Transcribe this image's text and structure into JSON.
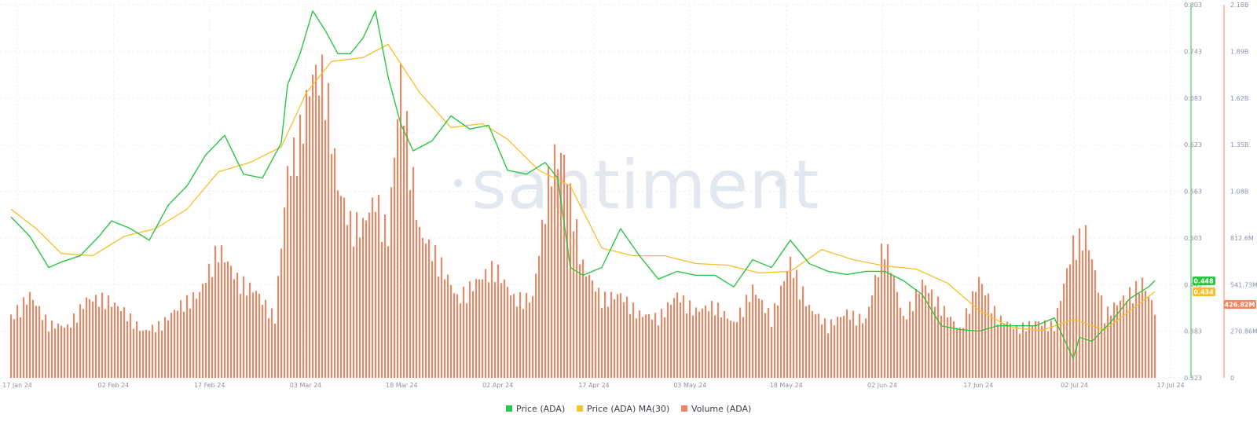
{
  "watermark": "santiment",
  "legend": [
    {
      "label": "Price (ADA)",
      "color": "#26c94f"
    },
    {
      "label": "Price (ADA) MA(30)",
      "color": "#f4c430"
    },
    {
      "label": "Volume (ADA)",
      "color": "#f4845f"
    }
  ],
  "colors": {
    "price": "#2bc544",
    "ma": "#f5bf2a",
    "volume": "#f4845f",
    "price_axis": "#2bc544",
    "volume_axis": "#f4845f",
    "grid": "#eceff5"
  },
  "badges": {
    "price": "0.448",
    "ma": "0.434",
    "volume": "426.82M"
  },
  "chart_data": {
    "type": "line",
    "x_ticks": [
      "17 Jan 24",
      "02 Feb 24",
      "17 Feb 24",
      "03 Mar 24",
      "18 Mar 24",
      "02 Apr 24",
      "17 Apr 24",
      "03 May 24",
      "18 May 24",
      "02 Jun 24",
      "17 Jun 24",
      "02 Jul 24",
      "17 Jul 24"
    ],
    "y_left_ticks": [
      "0.803",
      "0.743",
      "0.683",
      "0.623",
      "0.563",
      "0.503",
      "0.443",
      "0.383",
      "0.323"
    ],
    "y_left_range": [
      0.323,
      0.803
    ],
    "y_right_ticks": [
      "2.18B",
      "1.89B",
      "1.62B",
      "1.35B",
      "1.08B",
      "812.6M",
      "541.73M",
      "270.86M",
      "0"
    ],
    "y_right_range": [
      0,
      2180000000
    ],
    "grid": true,
    "legend_position": "bottom-center",
    "series": [
      {
        "name": "Price (ADA)",
        "axis": "left",
        "x": [
          "2024-01-17",
          "2024-01-20",
          "2024-01-23",
          "2024-01-25",
          "2024-01-28",
          "2024-01-31",
          "2024-02-02",
          "2024-02-05",
          "2024-02-08",
          "2024-02-11",
          "2024-02-14",
          "2024-02-17",
          "2024-02-20",
          "2024-02-23",
          "2024-02-26",
          "2024-02-29",
          "2024-03-01",
          "2024-03-03",
          "2024-03-05",
          "2024-03-07",
          "2024-03-09",
          "2024-03-11",
          "2024-03-13",
          "2024-03-15",
          "2024-03-17",
          "2024-03-19",
          "2024-03-21",
          "2024-03-24",
          "2024-03-27",
          "2024-03-30",
          "2024-04-02",
          "2024-04-05",
          "2024-04-08",
          "2024-04-11",
          "2024-04-13",
          "2024-04-15",
          "2024-04-17",
          "2024-04-20",
          "2024-04-23",
          "2024-04-26",
          "2024-04-29",
          "2024-05-02",
          "2024-05-05",
          "2024-05-08",
          "2024-05-11",
          "2024-05-14",
          "2024-05-17",
          "2024-05-20",
          "2024-05-23",
          "2024-05-26",
          "2024-05-29",
          "2024-06-01",
          "2024-06-04",
          "2024-06-07",
          "2024-06-10",
          "2024-06-13",
          "2024-06-16",
          "2024-06-19",
          "2024-06-22",
          "2024-06-25",
          "2024-06-28",
          "2024-07-01",
          "2024-07-04",
          "2024-07-05",
          "2024-07-07",
          "2024-07-10",
          "2024-07-13",
          "2024-07-16",
          "2024-07-17"
        ],
        "values": [
          0.53,
          0.505,
          0.465,
          0.472,
          0.48,
          0.505,
          0.525,
          0.515,
          0.5,
          0.545,
          0.57,
          0.61,
          0.635,
          0.585,
          0.58,
          0.625,
          0.7,
          0.74,
          0.795,
          0.77,
          0.74,
          0.74,
          0.76,
          0.795,
          0.71,
          0.65,
          0.615,
          0.628,
          0.66,
          0.643,
          0.648,
          0.59,
          0.585,
          0.6,
          0.58,
          0.465,
          0.455,
          0.465,
          0.515,
          0.48,
          0.45,
          0.46,
          0.455,
          0.455,
          0.44,
          0.475,
          0.465,
          0.5,
          0.47,
          0.46,
          0.456,
          0.46,
          0.46,
          0.448,
          0.43,
          0.39,
          0.385,
          0.383,
          0.39,
          0.39,
          0.39,
          0.4,
          0.348,
          0.375,
          0.37,
          0.395,
          0.425,
          0.44,
          0.448
        ]
      },
      {
        "name": "Price (ADA) MA(30)",
        "axis": "left",
        "x": [
          "2024-01-17",
          "2024-01-21",
          "2024-01-25",
          "2024-01-30",
          "2024-02-04",
          "2024-02-09",
          "2024-02-14",
          "2024-02-19",
          "2024-02-24",
          "2024-02-29",
          "2024-03-04",
          "2024-03-08",
          "2024-03-13",
          "2024-03-17",
          "2024-03-22",
          "2024-03-27",
          "2024-04-01",
          "2024-04-05",
          "2024-04-10",
          "2024-04-15",
          "2024-04-20",
          "2024-04-25",
          "2024-04-30",
          "2024-05-05",
          "2024-05-10",
          "2024-05-15",
          "2024-05-20",
          "2024-05-25",
          "2024-05-30",
          "2024-06-04",
          "2024-06-09",
          "2024-06-14",
          "2024-06-19",
          "2024-06-24",
          "2024-06-29",
          "2024-07-04",
          "2024-07-09",
          "2024-07-14",
          "2024-07-17"
        ],
        "values": [
          0.54,
          0.515,
          0.483,
          0.48,
          0.505,
          0.515,
          0.54,
          0.588,
          0.6,
          0.62,
          0.69,
          0.73,
          0.735,
          0.752,
          0.69,
          0.645,
          0.65,
          0.63,
          0.59,
          0.57,
          0.49,
          0.48,
          0.48,
          0.47,
          0.468,
          0.458,
          0.46,
          0.488,
          0.475,
          0.467,
          0.463,
          0.445,
          0.41,
          0.388,
          0.384,
          0.398,
          0.385,
          0.415,
          0.434
        ]
      },
      {
        "name": "Volume (ADA)",
        "axis": "right",
        "x": [
          "2024-01-17",
          "2024-01-20",
          "2024-01-23",
          "2024-01-26",
          "2024-01-29",
          "2024-02-01",
          "2024-02-04",
          "2024-02-07",
          "2024-02-10",
          "2024-02-13",
          "2024-02-16",
          "2024-02-19",
          "2024-02-22",
          "2024-02-25",
          "2024-02-28",
          "2024-03-01",
          "2024-03-03",
          "2024-03-05",
          "2024-03-07",
          "2024-03-09",
          "2024-03-11",
          "2024-03-13",
          "2024-03-15",
          "2024-03-17",
          "2024-03-19",
          "2024-03-22",
          "2024-03-25",
          "2024-03-28",
          "2024-03-31",
          "2024-04-03",
          "2024-04-06",
          "2024-04-09",
          "2024-04-12",
          "2024-04-14",
          "2024-04-17",
          "2024-04-20",
          "2024-04-23",
          "2024-04-26",
          "2024-04-29",
          "2024-05-02",
          "2024-05-05",
          "2024-05-08",
          "2024-05-11",
          "2024-05-14",
          "2024-05-17",
          "2024-05-20",
          "2024-05-23",
          "2024-05-26",
          "2024-05-29",
          "2024-06-01",
          "2024-06-04",
          "2024-06-07",
          "2024-06-10",
          "2024-06-13",
          "2024-06-16",
          "2024-06-19",
          "2024-06-22",
          "2024-06-25",
          "2024-06-28",
          "2024-07-01",
          "2024-07-04",
          "2024-07-06",
          "2024-07-09",
          "2024-07-12",
          "2024-07-15",
          "2024-07-17"
        ],
        "values": [
          380000000,
          520000000,
          340000000,
          320000000,
          490000000,
          500000000,
          420000000,
          290000000,
          340000000,
          460000000,
          530000000,
          820000000,
          620000000,
          540000000,
          380000000,
          1290000000,
          1540000000,
          1900000000,
          1900000000,
          1200000000,
          980000000,
          960000000,
          1130000000,
          900000000,
          1890000000,
          910000000,
          750000000,
          500000000,
          600000000,
          700000000,
          500000000,
          500000000,
          1380000000,
          1380000000,
          700000000,
          500000000,
          520000000,
          400000000,
          380000000,
          520000000,
          420000000,
          460000000,
          340000000,
          560000000,
          380000000,
          730000000,
          440000000,
          330000000,
          410000000,
          360000000,
          870000000,
          370000000,
          600000000,
          450000000,
          300000000,
          620000000,
          380000000,
          310000000,
          350000000,
          330000000,
          840000000,
          910000000,
          400000000,
          500000000,
          600000000,
          426820000
        ]
      }
    ]
  }
}
